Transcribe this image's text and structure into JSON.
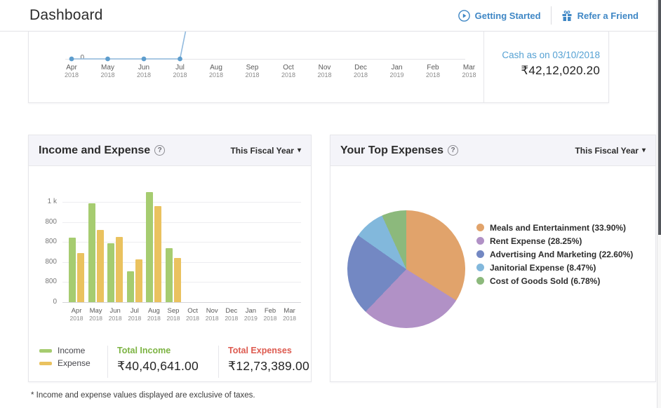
{
  "header": {
    "title": "Dashboard",
    "getting_started": "Getting Started",
    "refer_friend": "Refer a Friend"
  },
  "icons": {
    "help": "?",
    "caret": "▾"
  },
  "cashflow": {
    "cash_label": "Cash as on 03/10/2018",
    "cash_amount": "₹42,12,020.20"
  },
  "income_expense": {
    "title": "Income and Expense",
    "period": "This Fiscal Year",
    "legend": {
      "income": "Income",
      "expense": "Expense"
    },
    "total_income_label": "Total Income",
    "total_income": "₹40,40,641.00",
    "total_expenses_label": "Total Expenses",
    "total_expenses": "₹12,73,389.00"
  },
  "top_expenses": {
    "title": "Your Top Expenses",
    "period": "This Fiscal Year"
  },
  "footnote": "* Income and expense values displayed are exclusive of taxes.",
  "chart_data": [
    {
      "type": "line",
      "name": "cash-flow",
      "categories": [
        [
          "Apr",
          "2018"
        ],
        [
          "May",
          "2018"
        ],
        [
          "Jun",
          "2018"
        ],
        [
          "Jul",
          "2018"
        ],
        [
          "Aug",
          "2018"
        ],
        [
          "Sep",
          "2018"
        ],
        [
          "Oct",
          "2018"
        ],
        [
          "Nov",
          "2018"
        ],
        [
          "Dec",
          "2018"
        ],
        [
          "Jan",
          "2019"
        ],
        [
          "Feb",
          "2018"
        ],
        [
          "Mar",
          "2018"
        ]
      ],
      "visible_values": [
        0,
        0,
        0,
        0,
        null,
        null,
        null,
        null,
        null,
        null,
        null,
        null
      ],
      "note": "line rises steeply after Jul 2018 beyond the visible top edge; panel is cut off at top of screenshot",
      "y_tick_labels": [
        "0"
      ],
      "line_color": "#91bade",
      "marker_color": "#5d9dcd",
      "grid": false
    },
    {
      "type": "bar",
      "name": "income-and-expense",
      "categories": [
        [
          "Apr",
          "2018"
        ],
        [
          "May",
          "2018"
        ],
        [
          "Jun",
          "2018"
        ],
        [
          "Jul",
          "2018"
        ],
        [
          "Aug",
          "2018"
        ],
        [
          "Sep",
          "2018"
        ],
        [
          "Oct",
          "2018"
        ],
        [
          "Nov",
          "2018"
        ],
        [
          "Dec",
          "2018"
        ],
        [
          "Jan",
          "2019"
        ],
        [
          "Feb",
          "2018"
        ],
        [
          "Mar",
          "2018"
        ]
      ],
      "series": [
        {
          "name": "Income",
          "color": "#a6cc70",
          "values": [
            645,
            985,
            585,
            310,
            1100,
            540,
            null,
            null,
            null,
            null,
            null,
            null
          ]
        },
        {
          "name": "Expense",
          "color": "#eac25f",
          "values": [
            490,
            720,
            650,
            425,
            955,
            440,
            null,
            null,
            null,
            null,
            null,
            null
          ]
        }
      ],
      "ylim": [
        0,
        1000
      ],
      "y_tick_labels_bottom_to_top": [
        "0",
        "800",
        "800",
        "800",
        "800",
        "1 k"
      ],
      "grid": true,
      "legend_position": "bottom-left"
    },
    {
      "type": "pie",
      "name": "top-expenses",
      "slices": [
        {
          "label": "Meals and Entertainment",
          "pct": "33.90",
          "color": "#e1a36b"
        },
        {
          "label": "Rent Expense",
          "pct": "28.25",
          "color": "#b191c6"
        },
        {
          "label": "Advertising And Marketing",
          "pct": "22.60",
          "color": "#7388c3"
        },
        {
          "label": "Janitorial Expense",
          "pct": "8.47",
          "color": "#82b8dc"
        },
        {
          "label": "Cost of Goods Sold",
          "pct": "6.78",
          "color": "#8cb97c"
        }
      ],
      "start_angle_deg": 0,
      "direction": "clockwise",
      "legend_position": "right"
    }
  ]
}
